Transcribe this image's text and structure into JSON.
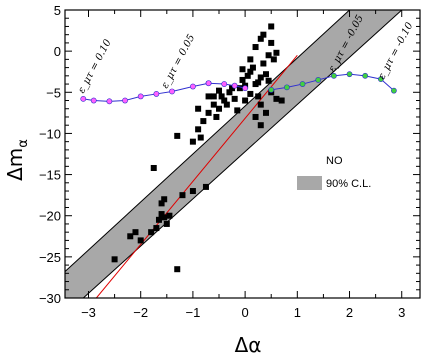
{
  "chart_data": {
    "type": "scatter",
    "xlabel": "Δα",
    "ylabel": "Δm",
    "ylabel_sub": "α",
    "xlim": [
      -3.45,
      3.35
    ],
    "ylim": [
      -30,
      5
    ],
    "xticks": [
      -3,
      -2,
      -1,
      0,
      1,
      2,
      3
    ],
    "yticks": [
      5,
      0,
      -5,
      -10,
      -15,
      -20,
      -25,
      -30
    ],
    "legend": {
      "title": "NO",
      "entries": [
        {
          "label": "90% C.L.",
          "color": "#a8a8a8"
        }
      ],
      "placement": "right"
    },
    "band": {
      "name": "90% C.L.",
      "color": "#a8a8a8",
      "lower": [
        [
          -3.1,
          -30
        ],
        [
          3.35,
          7.0
        ]
      ],
      "upper": [
        [
          -4.0,
          -30
        ],
        [
          2.0,
          5.0
        ]
      ]
    },
    "fit_line": {
      "color": "#e00000",
      "points": [
        [
          -2.85,
          -30
        ],
        [
          1.0,
          -0.5
        ]
      ]
    },
    "scatter": {
      "marker_color": "#000000",
      "points": [
        [
          -2.5,
          -25.3
        ],
        [
          -2.2,
          -22.5
        ],
        [
          -2.1,
          -22.0
        ],
        [
          -2.0,
          -23.0
        ],
        [
          -1.8,
          -22.0
        ],
        [
          -1.7,
          -21.5
        ],
        [
          -1.65,
          -20.5
        ],
        [
          -1.6,
          -19.8
        ],
        [
          -1.55,
          -20.2
        ],
        [
          -1.5,
          -21.0
        ],
        [
          -1.45,
          -20.0
        ],
        [
          -1.6,
          -18.5
        ],
        [
          -1.55,
          -18.0
        ],
        [
          -1.75,
          -14.2
        ],
        [
          -1.3,
          -26.5
        ],
        [
          -1.2,
          -17.5
        ],
        [
          -1.0,
          -17.0
        ],
        [
          -0.75,
          -16.5
        ],
        [
          -1.3,
          -10.3
        ],
        [
          -1.0,
          -11.0
        ],
        [
          -0.9,
          -9.5
        ],
        [
          -0.8,
          -8.5
        ],
        [
          -0.85,
          -10.5
        ],
        [
          -0.7,
          -7.5
        ],
        [
          -0.6,
          -6.5
        ],
        [
          -0.55,
          -8.0
        ],
        [
          -0.5,
          -7.0
        ],
        [
          -0.45,
          -5.5
        ],
        [
          -0.4,
          -6.0
        ],
        [
          -0.3,
          -5.0
        ],
        [
          -0.25,
          -4.5
        ],
        [
          -0.2,
          -5.8
        ],
        [
          -0.1,
          -4.5
        ],
        [
          -0.05,
          -3.5
        ],
        [
          0.0,
          -4.2
        ],
        [
          0.05,
          -3.0
        ],
        [
          0.1,
          -2.5
        ],
        [
          0.15,
          -2.0
        ],
        [
          0.2,
          -4.0
        ],
        [
          0.25,
          -5.5
        ],
        [
          0.3,
          -3.2
        ],
        [
          0.35,
          -1.5
        ],
        [
          0.4,
          -2.8
        ],
        [
          0.45,
          -0.5
        ],
        [
          0.5,
          1.0
        ],
        [
          0.2,
          0.5
        ],
        [
          0.3,
          1.5
        ],
        [
          0.35,
          2.0
        ],
        [
          0.55,
          -1.0
        ],
        [
          0.6,
          -0.2
        ],
        [
          0.5,
          3.0
        ],
        [
          -0.5,
          -4.8
        ],
        [
          -0.6,
          -5.5
        ],
        [
          -0.35,
          -6.5
        ],
        [
          0.0,
          -6.0
        ],
        [
          0.1,
          -5.2
        ],
        [
          0.3,
          -6.5
        ],
        [
          0.4,
          -7.5
        ],
        [
          0.6,
          -5.8
        ],
        [
          0.5,
          -5.0
        ],
        [
          0.7,
          -6.0
        ],
        [
          0.2,
          -8.0
        ],
        [
          0.3,
          -9.0
        ],
        [
          -0.15,
          -7.2
        ],
        [
          -0.9,
          -7.0
        ],
        [
          -0.7,
          -5.5
        ],
        [
          0.25,
          -3.8
        ],
        [
          0.45,
          -3.6
        ],
        [
          -0.05,
          -2.2
        ],
        [
          0.1,
          -1.0
        ]
      ]
    },
    "series": [
      {
        "name": "ε_μτ = 0.10",
        "color": "#3030d0",
        "marker_fill": "#ff60ff",
        "x": [
          -3.1,
          -2.9,
          -2.6,
          -2.3,
          -2.0,
          -1.7,
          -1.4,
          -1.0,
          -0.7
        ],
        "y": [
          -5.8,
          -6.0,
          -6.1,
          -6.0,
          -5.5,
          -5.2,
          -4.9,
          -4.3,
          -3.9
        ]
      },
      {
        "name": "ε_μτ = 0.05",
        "color": "#3030d0",
        "marker_fill": "#ff60ff",
        "x": [
          -0.7,
          -0.4,
          -0.2,
          0.0
        ],
        "y": [
          -3.9,
          -4.0,
          -4.2,
          -4.5
        ]
      },
      {
        "name": "ε_μτ = −0.05",
        "color": "#3030d0",
        "marker_fill": "#40d040",
        "x": [
          0.5,
          0.8,
          1.1,
          1.4,
          1.7,
          2.0,
          2.3,
          2.6,
          2.85
        ],
        "y": [
          -4.7,
          -4.4,
          -4.0,
          -3.5,
          -3.0,
          -2.8,
          -3.0,
          -3.4,
          -4.8
        ]
      }
    ],
    "curve_labels": [
      {
        "text": "ε_μτ = 0.10",
        "x": -3.1,
        "y": -5.2
      },
      {
        "text": "ε_μτ = 0.05",
        "x": -1.5,
        "y": -4.6
      },
      {
        "text": "ε_μτ = -0.05",
        "x": 1.7,
        "y": -2.6
      },
      {
        "text": "ε_μτ = -0.10",
        "x": 2.65,
        "y": -3.5
      }
    ]
  }
}
